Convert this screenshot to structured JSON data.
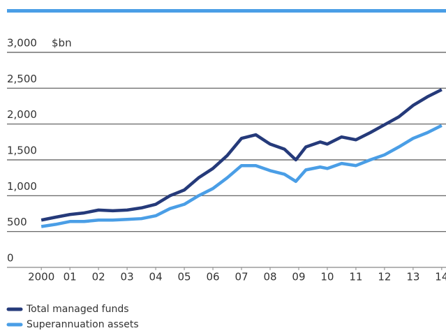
{
  "chart_data": {
    "type": "line",
    "y_unit": "$bn",
    "x": [
      2000,
      2000.5,
      2001,
      2001.5,
      2002,
      2002.5,
      2003,
      2003.5,
      2004,
      2004.5,
      2005,
      2005.5,
      2006,
      2006.5,
      2007,
      2007.5,
      2008,
      2008.5,
      2008.9,
      2009.25,
      2009.75,
      2010,
      2010.5,
      2011,
      2011.5,
      2012,
      2012.5,
      2013,
      2013.5,
      2014
    ],
    "series": [
      {
        "name": "Total managed funds",
        "color": "#253a7a",
        "values": [
          660,
          700,
          738,
          760,
          800,
          790,
          800,
          830,
          880,
          1000,
          1080,
          1250,
          1380,
          1560,
          1800,
          1850,
          1720,
          1650,
          1500,
          1680,
          1750,
          1720,
          1820,
          1780,
          1880,
          1990,
          2100,
          2260,
          2380,
          2480
        ]
      },
      {
        "name": "Superannuation assets",
        "color": "#4a9ee6",
        "values": [
          570,
          600,
          640,
          640,
          660,
          660,
          670,
          680,
          720,
          820,
          880,
          1000,
          1100,
          1250,
          1420,
          1420,
          1350,
          1300,
          1200,
          1360,
          1400,
          1380,
          1450,
          1420,
          1500,
          1570,
          1680,
          1800,
          1880,
          1980
        ]
      }
    ],
    "xlim": [
      1998.8,
      2014.15
    ],
    "xticks": [
      {
        "value": 2000,
        "label": "2000"
      },
      {
        "value": 2001,
        "label": "01"
      },
      {
        "value": 2002,
        "label": "02"
      },
      {
        "value": 2003,
        "label": "03"
      },
      {
        "value": 2004,
        "label": "04"
      },
      {
        "value": 2005,
        "label": "05"
      },
      {
        "value": 2006,
        "label": "06"
      },
      {
        "value": 2007,
        "label": "07"
      },
      {
        "value": 2008,
        "label": "08"
      },
      {
        "value": 2009,
        "label": "09"
      },
      {
        "value": 2010,
        "label": "10"
      },
      {
        "value": 2011,
        "label": "11"
      },
      {
        "value": 2012,
        "label": "12"
      },
      {
        "value": 2013,
        "label": "13"
      },
      {
        "value": 2014,
        "label": "14"
      }
    ],
    "ylim": [
      0,
      3000
    ],
    "yticks": [
      0,
      500,
      {
        "value": 1000,
        "label": "1,000"
      },
      {
        "value": 1500,
        "label": "1,500"
      },
      {
        "value": 2000,
        "label": "2,000"
      },
      {
        "value": 2500,
        "label": "2,500"
      },
      {
        "value": 3000,
        "label": "3,000"
      }
    ],
    "grid": true
  }
}
